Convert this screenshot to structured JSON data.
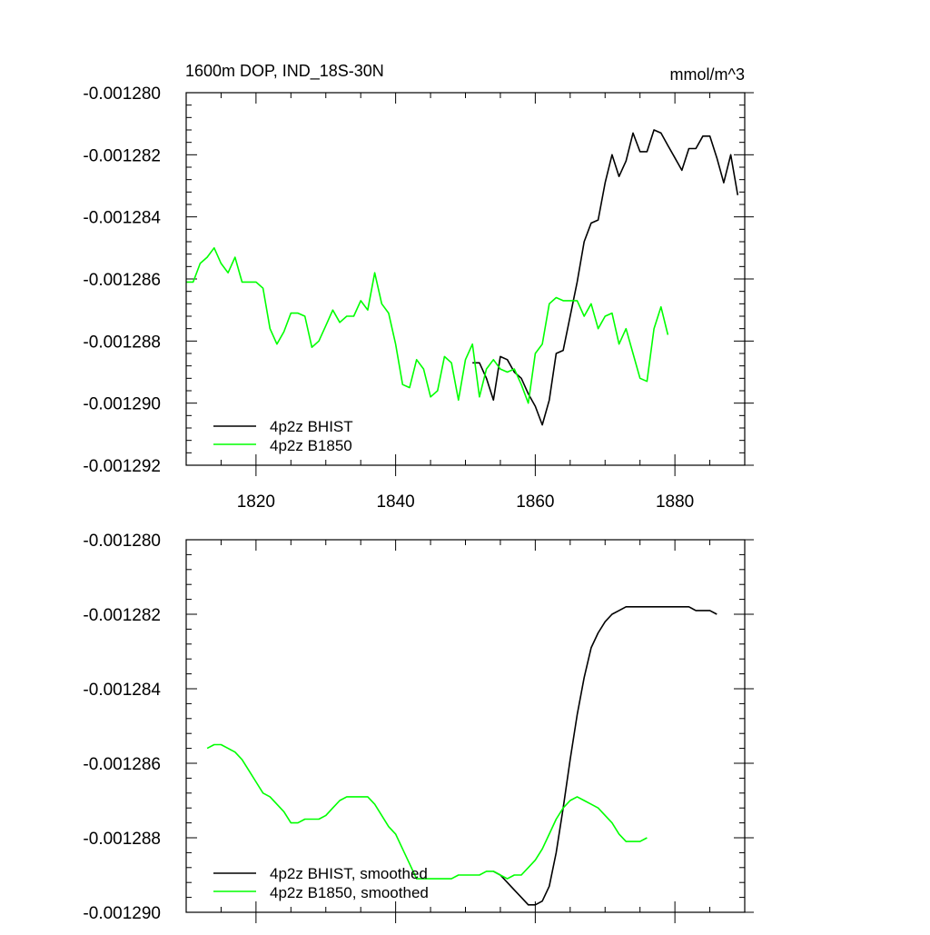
{
  "figure": {
    "title_left": "1600m DOP, IND_18S-30N",
    "title_right": "mmol/m^3"
  },
  "colors": {
    "bhist": "#000000",
    "b1850": "#00ff00"
  },
  "chart_data": [
    {
      "type": "line",
      "title": "1600m DOP, IND_18S-30N",
      "units": "mmol/m^3",
      "xlabel": "",
      "ylabel": "",
      "xlim": [
        1810,
        1890
      ],
      "ylim": [
        -0.001292,
        -0.00128
      ],
      "x_ticks": [
        1820,
        1840,
        1860,
        1880
      ],
      "x_tick_labels": [
        "1820",
        "1840",
        "1860",
        "1880"
      ],
      "y_ticks": [
        -0.00128,
        -0.001282,
        -0.001284,
        -0.001286,
        -0.001288,
        -0.00129,
        -0.001292
      ],
      "y_tick_labels": [
        "-0.001280",
        "-0.001282",
        "-0.001284",
        "-0.001286",
        "-0.001288",
        "-0.001290",
        "-0.001292"
      ],
      "legend_position": "bottom-left",
      "series": [
        {
          "name": "4p2z BHIST",
          "color": "#000000",
          "x": [
            1851,
            1852,
            1853,
            1854,
            1855,
            1856,
            1857,
            1858,
            1859,
            1860,
            1861,
            1862,
            1863,
            1864,
            1865,
            1866,
            1867,
            1868,
            1869,
            1870,
            1871,
            1872,
            1873,
            1874,
            1875,
            1876,
            1877,
            1878,
            1879,
            1880,
            1881,
            1882,
            1883,
            1884,
            1885,
            1886,
            1887,
            1888,
            1889
          ],
          "y": [
            -0.0012887,
            -0.0012887,
            -0.0012892,
            -0.0012899,
            -0.0012885,
            -0.0012886,
            -0.001289,
            -0.0012892,
            -0.0012897,
            -0.0012901,
            -0.0012907,
            -0.0012899,
            -0.0012884,
            -0.0012883,
            -0.0012872,
            -0.0012861,
            -0.0012848,
            -0.0012842,
            -0.0012841,
            -0.0012829,
            -0.001282,
            -0.0012827,
            -0.0012822,
            -0.0012813,
            -0.0012819,
            -0.0012819,
            -0.0012812,
            -0.0012813,
            -0.0012817,
            -0.0012821,
            -0.0012825,
            -0.0012818,
            -0.0012818,
            -0.0012814,
            -0.0012814,
            -0.0012821,
            -0.0012829,
            -0.001282,
            -0.0012833
          ]
        },
        {
          "name": "4p2z B1850",
          "color": "#00ff00",
          "x": [
            1810,
            1811,
            1812,
            1813,
            1814,
            1815,
            1816,
            1817,
            1818,
            1819,
            1820,
            1821,
            1822,
            1823,
            1824,
            1825,
            1826,
            1827,
            1828,
            1829,
            1830,
            1831,
            1832,
            1833,
            1834,
            1835,
            1836,
            1837,
            1838,
            1839,
            1840,
            1841,
            1842,
            1843,
            1844,
            1845,
            1846,
            1847,
            1848,
            1849,
            1850,
            1851,
            1852,
            1853,
            1854,
            1855,
            1856,
            1857,
            1858,
            1859,
            1860,
            1861,
            1862,
            1863,
            1864,
            1865,
            1866,
            1867,
            1868,
            1869,
            1870,
            1871,
            1872,
            1873,
            1874,
            1875,
            1876,
            1877,
            1878,
            1879
          ],
          "y": [
            -0.0012861,
            -0.0012861,
            -0.0012855,
            -0.0012853,
            -0.001285,
            -0.0012855,
            -0.0012858,
            -0.0012853,
            -0.0012861,
            -0.0012861,
            -0.0012861,
            -0.0012863,
            -0.0012876,
            -0.0012881,
            -0.0012877,
            -0.0012871,
            -0.0012871,
            -0.0012872,
            -0.0012882,
            -0.001288,
            -0.0012875,
            -0.001287,
            -0.0012874,
            -0.0012872,
            -0.0012872,
            -0.0012867,
            -0.001287,
            -0.0012858,
            -0.0012868,
            -0.0012871,
            -0.0012881,
            -0.0012894,
            -0.0012895,
            -0.0012886,
            -0.0012889,
            -0.0012898,
            -0.0012896,
            -0.0012885,
            -0.0012887,
            -0.0012899,
            -0.0012886,
            -0.0012881,
            -0.0012898,
            -0.0012889,
            -0.0012886,
            -0.0012889,
            -0.001289,
            -0.0012889,
            -0.0012894,
            -0.00129,
            -0.0012884,
            -0.0012881,
            -0.0012868,
            -0.0012866,
            -0.0012867,
            -0.0012867,
            -0.0012867,
            -0.0012872,
            -0.0012868,
            -0.0012876,
            -0.0012872,
            -0.0012871,
            -0.0012881,
            -0.0012876,
            -0.0012884,
            -0.0012892,
            -0.0012893,
            -0.0012876,
            -0.0012869,
            -0.0012878
          ]
        }
      ]
    },
    {
      "type": "line",
      "title": "",
      "xlabel": "",
      "ylabel": "",
      "xlim": [
        1810,
        1890
      ],
      "ylim": [
        -0.00129,
        -0.00128
      ],
      "x_ticks": [
        1820,
        1840,
        1860,
        1880
      ],
      "x_tick_labels": [],
      "y_ticks": [
        -0.00128,
        -0.001282,
        -0.001284,
        -0.001286,
        -0.001288,
        -0.00129
      ],
      "y_tick_labels": [
        "-0.001280",
        "-0.001282",
        "-0.001284",
        "-0.001286",
        "-0.001288",
        "-0.001290"
      ],
      "legend_position": "bottom-left",
      "series": [
        {
          "name": "4p2z BHIST, smoothed",
          "color": "#000000",
          "x": [
            1854,
            1855,
            1856,
            1857,
            1858,
            1859,
            1860,
            1861,
            1862,
            1863,
            1864,
            1865,
            1866,
            1867,
            1868,
            1869,
            1870,
            1871,
            1872,
            1873,
            1874,
            1875,
            1876,
            1877,
            1878,
            1879,
            1880,
            1881,
            1882,
            1883,
            1884,
            1885,
            1886
          ],
          "y": [
            -0.0012889,
            -0.001289,
            -0.0012892,
            -0.0012894,
            -0.0012896,
            -0.0012898,
            -0.0012898,
            -0.0012897,
            -0.0012893,
            -0.0012884,
            -0.0012872,
            -0.0012859,
            -0.0012847,
            -0.0012837,
            -0.0012829,
            -0.0012825,
            -0.0012822,
            -0.001282,
            -0.0012819,
            -0.0012818,
            -0.0012818,
            -0.0012818,
            -0.0012818,
            -0.0012818,
            -0.0012818,
            -0.0012818,
            -0.0012818,
            -0.0012818,
            -0.0012818,
            -0.0012819,
            -0.0012819,
            -0.0012819,
            -0.001282
          ]
        },
        {
          "name": "4p2z B1850, smoothed",
          "color": "#00ff00",
          "x": [
            1813,
            1814,
            1815,
            1816,
            1817,
            1818,
            1819,
            1820,
            1821,
            1822,
            1823,
            1824,
            1825,
            1826,
            1827,
            1828,
            1829,
            1830,
            1831,
            1832,
            1833,
            1834,
            1835,
            1836,
            1837,
            1838,
            1839,
            1840,
            1841,
            1842,
            1843,
            1844,
            1845,
            1846,
            1847,
            1848,
            1849,
            1850,
            1851,
            1852,
            1853,
            1854,
            1855,
            1856,
            1857,
            1858,
            1859,
            1860,
            1861,
            1862,
            1863,
            1864,
            1865,
            1866,
            1867,
            1868,
            1869,
            1870,
            1871,
            1872,
            1873,
            1874,
            1875,
            1876
          ],
          "y": [
            -0.0012856,
            -0.0012855,
            -0.0012855,
            -0.0012856,
            -0.0012857,
            -0.0012859,
            -0.0012862,
            -0.0012865,
            -0.0012868,
            -0.0012869,
            -0.0012871,
            -0.0012873,
            -0.0012876,
            -0.0012876,
            -0.0012875,
            -0.0012875,
            -0.0012875,
            -0.0012874,
            -0.0012872,
            -0.001287,
            -0.0012869,
            -0.0012869,
            -0.0012869,
            -0.0012869,
            -0.0012871,
            -0.0012874,
            -0.0012877,
            -0.0012879,
            -0.0012883,
            -0.0012887,
            -0.0012891,
            -0.0012891,
            -0.0012891,
            -0.0012891,
            -0.0012891,
            -0.0012891,
            -0.001289,
            -0.001289,
            -0.001289,
            -0.001289,
            -0.0012889,
            -0.0012889,
            -0.001289,
            -0.0012891,
            -0.001289,
            -0.001289,
            -0.0012888,
            -0.0012886,
            -0.0012883,
            -0.0012879,
            -0.0012875,
            -0.0012872,
            -0.001287,
            -0.0012869,
            -0.001287,
            -0.0012871,
            -0.0012872,
            -0.0012874,
            -0.0012876,
            -0.0012879,
            -0.0012881,
            -0.0012881,
            -0.0012881,
            -0.001288
          ]
        }
      ]
    }
  ]
}
